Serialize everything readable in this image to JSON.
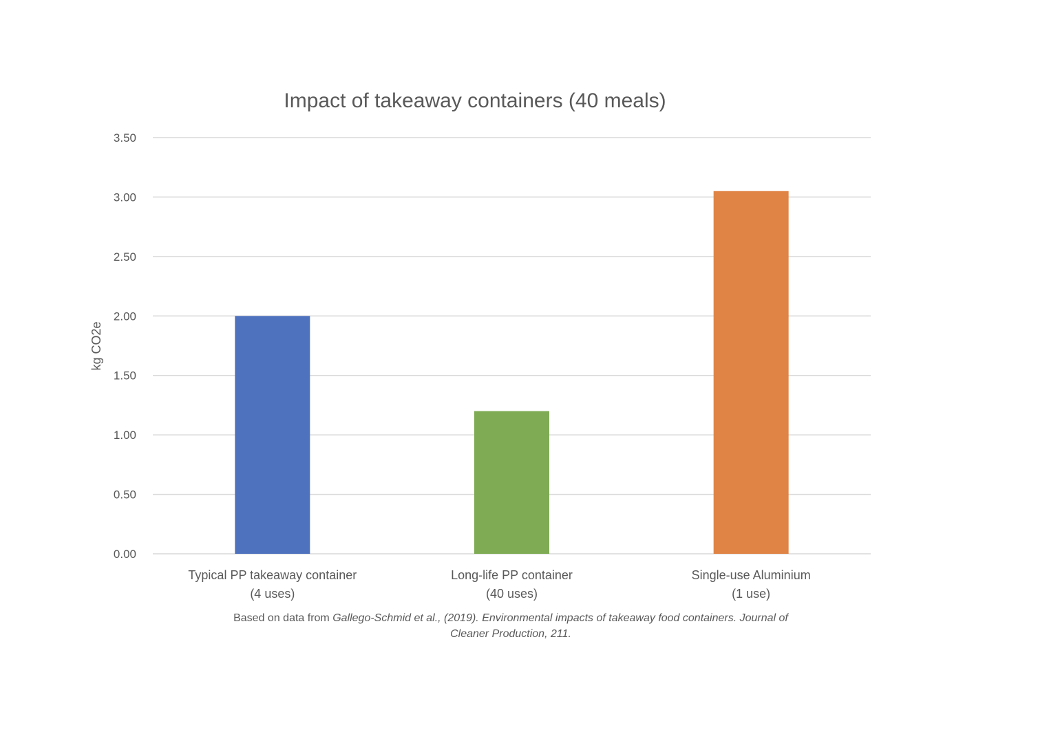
{
  "chart_data": {
    "type": "bar",
    "title": "Impact of takeaway containers (40 meals)",
    "xlabel": "",
    "ylabel": "kg CO2e",
    "ylim": [
      0,
      3.5
    ],
    "yticks": [
      "0.00",
      "0.50",
      "1.00",
      "1.50",
      "2.00",
      "2.50",
      "3.00",
      "3.50"
    ],
    "grid": true,
    "categories": [
      {
        "line1": "Typical PP takeaway container",
        "line2": "(4 uses)"
      },
      {
        "line1": "Long-life PP container",
        "line2": "(40 uses)"
      },
      {
        "line1": "Single-use Aluminium",
        "line2": "(1 use)"
      }
    ],
    "values": [
      2.0,
      1.2,
      3.05
    ],
    "colors": [
      "#4f72bf",
      "#7eab53",
      "#df8445"
    ]
  },
  "source": {
    "prefix": "Based on data from ",
    "citation_line1": "Gallego-Schmid et al., (2019). Environmental impacts of takeaway food containers. Journal of",
    "citation_line2": "Cleaner Production, 211."
  }
}
